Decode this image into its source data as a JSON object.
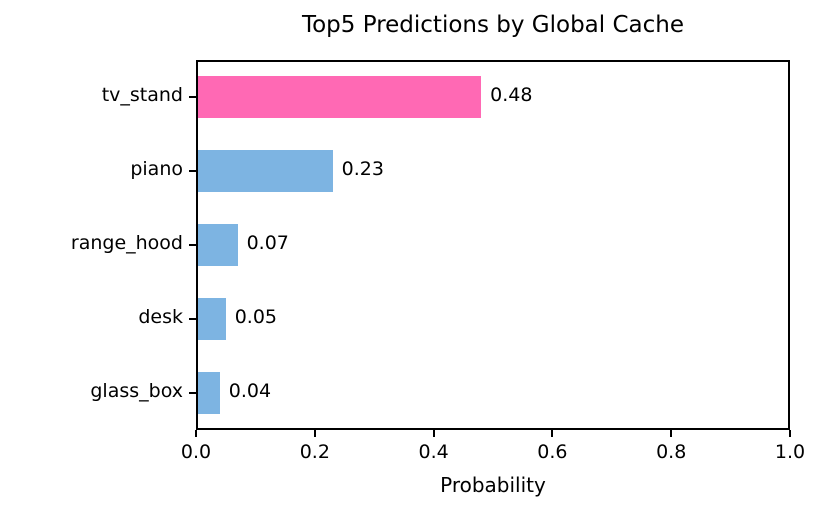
{
  "chart_data": {
    "type": "bar",
    "orientation": "horizontal",
    "title": "Top5 Predictions by Global Cache",
    "xlabel": "Probability",
    "ylabel": "",
    "categories": [
      "tv_stand",
      "piano",
      "range_hood",
      "desk",
      "glass_box"
    ],
    "values": [
      0.48,
      0.23,
      0.07,
      0.05,
      0.04
    ],
    "value_labels": [
      "0.48",
      "0.23",
      "0.07",
      "0.05",
      "0.04"
    ],
    "bar_colors": [
      "#FF69B4",
      "#7DB4E2",
      "#7DB4E2",
      "#7DB4E2",
      "#7DB4E2"
    ],
    "highlight_color": "#FF69B4",
    "default_color": "#7DB4E2",
    "xlim": [
      0.0,
      1.0
    ],
    "x_ticks": [
      "0.0",
      "0.2",
      "0.4",
      "0.6",
      "0.8",
      "1.0"
    ],
    "x_tick_values": [
      0.0,
      0.2,
      0.4,
      0.6,
      0.8,
      1.0
    ],
    "grid": false,
    "legend": false,
    "background_color": "#ffffff",
    "text_color": "#000000"
  }
}
